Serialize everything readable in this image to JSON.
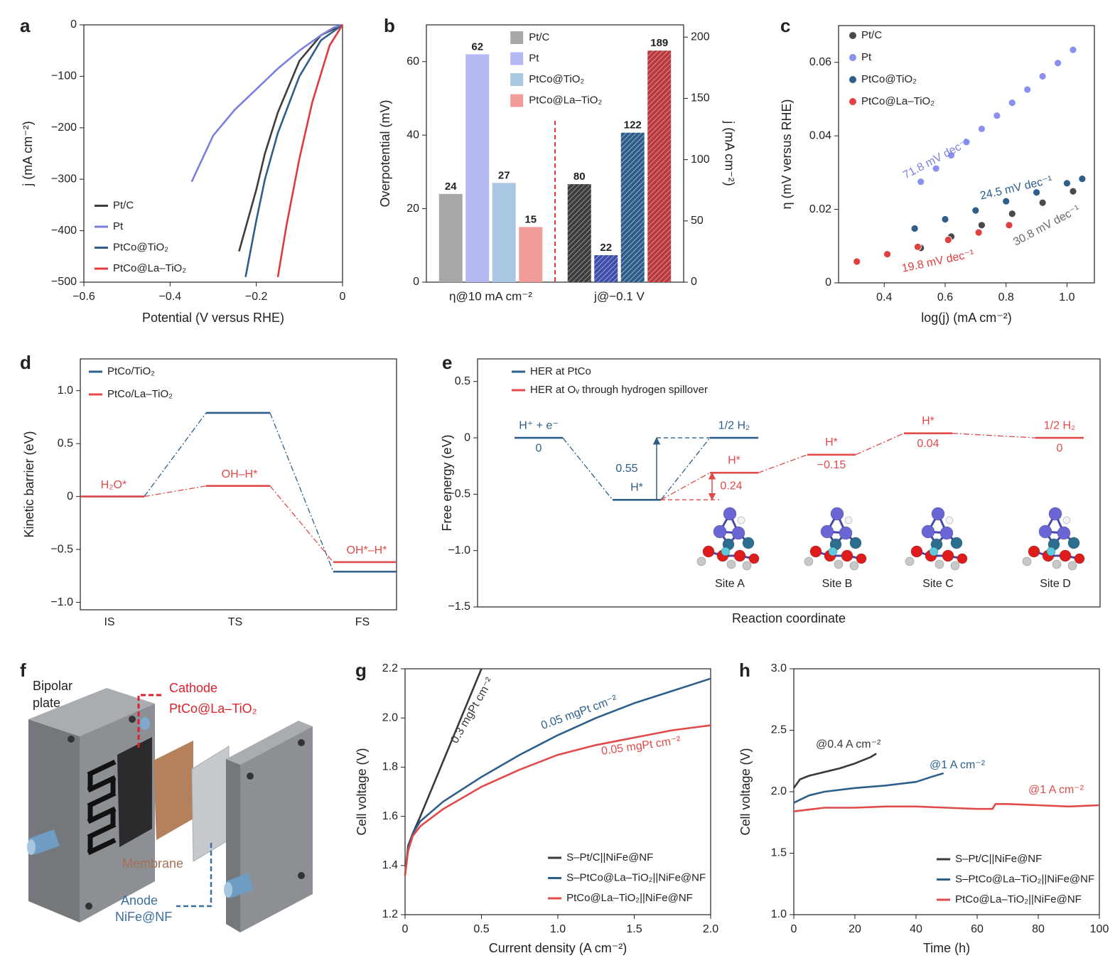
{
  "chart_data": [
    {
      "panel": "a",
      "type": "line",
      "xlabel": "Potential (V versus RHE)",
      "ylabel": "j (mA cm⁻²)",
      "xlim": [
        -0.6,
        0
      ],
      "ylim": [
        -500,
        0
      ],
      "xticks": [
        {
          "value": -0.6,
          "label": "−0.6"
        },
        {
          "value": -0.4,
          "label": "−0.4"
        },
        {
          "value": -0.2,
          "label": "−0.2"
        },
        0
      ],
      "yticks": [
        0,
        {
          "value": -100,
          "label": "−100"
        },
        {
          "value": -200,
          "label": "−200"
        },
        {
          "value": -300,
          "label": "−300"
        },
        {
          "value": -400,
          "label": "−400"
        },
        {
          "value": -500,
          "label": "−500"
        }
      ],
      "legend": "lower left",
      "series": [
        {
          "name": "Pt/C",
          "color": "#3d3d3d",
          "x": [
            0,
            -0.05,
            -0.1,
            -0.15,
            -0.18,
            -0.2,
            -0.24
          ],
          "values": [
            0,
            -20,
            -70,
            -170,
            -250,
            -320,
            -440
          ]
        },
        {
          "name": "Pt",
          "color": "#7b80e0",
          "x": [
            0,
            -0.02,
            -0.05,
            -0.1,
            -0.15,
            -0.2,
            -0.25,
            -0.3,
            -0.35
          ],
          "values": [
            0,
            -5,
            -20,
            -50,
            -85,
            -125,
            -165,
            -215,
            -305
          ]
        },
        {
          "name": "PtCo@TiO₂",
          "color": "#2e5f8a",
          "x": [
            0,
            -0.05,
            -0.1,
            -0.15,
            -0.18,
            -0.2,
            -0.225
          ],
          "values": [
            0,
            -30,
            -100,
            -210,
            -300,
            -380,
            -490
          ]
        },
        {
          "name": "PtCo@La–TiO₂",
          "color": "#e0393e",
          "x": [
            0,
            -0.03,
            -0.07,
            -0.1,
            -0.13,
            -0.15
          ],
          "values": [
            0,
            -40,
            -150,
            -260,
            -390,
            -490
          ]
        }
      ]
    },
    {
      "panel": "b",
      "type": "bar",
      "ylabel": "Overpotential (mV)",
      "y2label": "j (mA cm⁻²)",
      "categories": [
        "η@10 mA cm⁻²",
        "j@−0.1 V"
      ],
      "category_axes": [
        "y",
        "y2"
      ],
      "ylim": [
        0,
        70
      ],
      "yticks": [
        0,
        20,
        40,
        60
      ],
      "y2lim": [
        0,
        210
      ],
      "y2ticks": [
        0,
        50,
        100,
        150,
        200
      ],
      "legend": "upper center",
      "series": [
        {
          "name": "Pt/C",
          "color": "#a8a8a8",
          "hatch_color": "#3c3c3c",
          "values": [
            24,
            80
          ]
        },
        {
          "name": "Pt",
          "color": "#b3b7f2",
          "hatch_color": "#3d4ea6",
          "values": [
            62,
            22
          ]
        },
        {
          "name": "PtCo@TiO₂",
          "color": "#a9c7e3",
          "hatch_color": "#2f5b86",
          "values": [
            27,
            122
          ]
        },
        {
          "name": "PtCo@La–TiO₂",
          "color": "#f29b9b",
          "hatch_color": "#b73a3f",
          "values": [
            15,
            189
          ]
        }
      ]
    },
    {
      "panel": "c",
      "type": "scatter",
      "xlabel": "log(j) (mA cm⁻²)",
      "ylabel": "η (mV versus RHE)",
      "xlim": [
        0.25,
        1.09
      ],
      "ylim": [
        0,
        0.07
      ],
      "xticks": [
        0.4,
        0.6,
        0.8,
        {
          "value": 1,
          "label": "1.0"
        }
      ],
      "yticks": [
        0,
        0.02,
        0.04,
        0.06
      ],
      "legend": "upper left",
      "series": [
        {
          "name": "Pt/C",
          "color": "#4a4a4a",
          "x": [
            0.52,
            0.62,
            0.72,
            0.82,
            0.92,
            1.02
          ],
          "values": [
            0.0095,
            0.0126,
            0.0157,
            0.0188,
            0.0218,
            0.0249
          ]
        },
        {
          "name": "Pt",
          "color": "#8a8ff0",
          "x": [
            0.52,
            0.57,
            0.62,
            0.67,
            0.72,
            0.77,
            0.82,
            0.87,
            0.92,
            0.97,
            1.02
          ],
          "values": [
            0.0275,
            0.0311,
            0.0347,
            0.0383,
            0.0419,
            0.0455,
            0.049,
            0.0526,
            0.0562,
            0.0598,
            0.0634
          ]
        },
        {
          "name": "PtCo@TiO₂",
          "color": "#2e5f8a",
          "x": [
            0.5,
            0.6,
            0.7,
            0.8,
            0.9,
            1.0,
            1.05
          ],
          "values": [
            0.0148,
            0.0173,
            0.0197,
            0.0222,
            0.0246,
            0.0271,
            0.0283
          ]
        },
        {
          "name": "PtCo@La–TiO₂",
          "color": "#e04040",
          "x": [
            0.31,
            0.41,
            0.51,
            0.61,
            0.71,
            0.81
          ],
          "values": [
            0.0058,
            0.0078,
            0.0098,
            0.0117,
            0.0137,
            0.0157
          ]
        }
      ],
      "annotations": [
        {
          "text": "71.8 mV dec⁻¹",
          "color": "#7b80e0"
        },
        {
          "text": "24.5 mV dec⁻¹",
          "color": "#2e5f8a"
        },
        {
          "text": "30.8 mV dec⁻¹",
          "color": "#6a6a6a"
        },
        {
          "text": "19.8 mV dec⁻¹",
          "color": "#e04040"
        }
      ]
    },
    {
      "panel": "d",
      "type": "barrier",
      "ylabel": "Kinetic barrier (eV)",
      "categories": [
        "IS",
        "TS",
        "FS"
      ],
      "ylim": [
        -1.07,
        1.3
      ],
      "yticks": [
        {
          "value": 1,
          "label": "1.0"
        },
        0.5,
        0,
        {
          "value": -0.5,
          "label": "−0.5"
        },
        {
          "value": -1,
          "label": "−1.0"
        }
      ],
      "legend": "upper left",
      "series": [
        {
          "name": "PtCo/TiO₂",
          "color": "#2e5f8a",
          "values": [
            0,
            0.79,
            -0.71
          ]
        },
        {
          "name": "PtCo/La–TiO₂",
          "color": "#e04a4a",
          "values": [
            0,
            0.1,
            -0.62
          ],
          "state_labels": [
            "H₂O*",
            "OH–H*",
            "OH*–H*"
          ]
        }
      ]
    },
    {
      "panel": "e",
      "type": "energy",
      "ylabel": "Free energy (eV)",
      "xlabel": "Reaction coordinate",
      "ylim": [
        -1.5,
        0.7
      ],
      "yticks": [
        0.5,
        0,
        {
          "value": -0.5,
          "label": "−0.5"
        },
        {
          "value": -1,
          "label": "−1.0"
        },
        {
          "value": -1.5,
          "label": "−1.5"
        }
      ],
      "legend": "upper left",
      "series": [
        {
          "name": "HER at PtCo",
          "color": "#2e5f8a",
          "values": [
            0,
            -0.55,
            0
          ],
          "state_labels": [
            "H⁺ + e⁻",
            "H*",
            "1/2 H₂"
          ],
          "value_labels": [
            "0",
            null,
            null
          ]
        },
        {
          "name": "HER at Oᵥ through hydrogen spillover",
          "color": "#e04a4a",
          "values": [
            -0.31,
            -0.15,
            0.04,
            0
          ],
          "state_labels": [
            "H*",
            "H*",
            "H*",
            "1/2 H₂"
          ],
          "value_labels": [
            null,
            "−0.15",
            "0.04",
            "0"
          ]
        }
      ],
      "annotations": [
        {
          "value": 0.55,
          "color": "#2e5f8a"
        },
        {
          "value": 0.24,
          "color": "#e04a4a"
        }
      ],
      "sites": [
        "Site A",
        "Site B",
        "Site C",
        "Site D"
      ]
    },
    {
      "panel": "f",
      "type": "diagram",
      "labels": {
        "bipolar_plate": [
          "Bipolar",
          "plate"
        ],
        "cathode": "Cathode",
        "cathode_material": "PtCo@La–TiO₂",
        "membrane": "Membrane",
        "anode": "Anode",
        "anode_material": "NiFe@NF"
      }
    },
    {
      "panel": "g",
      "type": "line",
      "xlabel": "Current density (A cm⁻²)",
      "ylabel": "Cell voltage (V)",
      "xlim": [
        0,
        2
      ],
      "ylim": [
        1.2,
        2.2
      ],
      "xticks": [
        0,
        0.5,
        {
          "value": 1,
          "label": "1.0"
        },
        1.5,
        {
          "value": 2,
          "label": "2.0"
        }
      ],
      "yticks": [
        1.2,
        1.4,
        1.6,
        1.8,
        {
          "value": 2,
          "label": "2.0"
        },
        2.2
      ],
      "legend": "lower right",
      "series": [
        {
          "name": "S–Pt/C||NiFe@NF",
          "color": "#3a3a3a",
          "x": [
            0,
            0.02,
            0.05,
            0.1,
            0.2,
            0.3,
            0.4,
            0.5
          ],
          "values": [
            1.36,
            1.48,
            1.53,
            1.6,
            1.75,
            1.9,
            2.05,
            2.2
          ]
        },
        {
          "name": "S–PtCo@La–TiO₂||NiFe@NF",
          "color": "#2e5f8a",
          "x": [
            0,
            0.02,
            0.05,
            0.1,
            0.25,
            0.5,
            0.75,
            1,
            1.25,
            1.5,
            1.75,
            2
          ],
          "values": [
            1.36,
            1.47,
            1.53,
            1.58,
            1.66,
            1.76,
            1.85,
            1.93,
            2,
            2.06,
            2.11,
            2.16
          ]
        },
        {
          "name": "PtCo@La–TiO₂||NiFe@NF",
          "color": "#e04a4a",
          "x": [
            0,
            0.02,
            0.05,
            0.1,
            0.25,
            0.5,
            0.75,
            1,
            1.25,
            1.5,
            1.75,
            2
          ],
          "values": [
            1.36,
            1.46,
            1.52,
            1.56,
            1.63,
            1.72,
            1.79,
            1.85,
            1.89,
            1.92,
            1.95,
            1.97
          ]
        }
      ],
      "annotations": [
        {
          "text": "0.3 mgPt cm⁻²",
          "color": "#3a3a3a"
        },
        {
          "text": "0.05 mgPt cm⁻²",
          "color": "#2e5f8a"
        },
        {
          "text": "0.05 mgPt cm⁻²",
          "color": "#e04a4a"
        }
      ]
    },
    {
      "panel": "h",
      "type": "line",
      "xlabel": "Time (h)",
      "ylabel": "Cell voltage (V)",
      "xlim": [
        0,
        100
      ],
      "ylim": [
        1,
        3
      ],
      "xticks": [
        0,
        20,
        40,
        60,
        80,
        100
      ],
      "yticks": [
        {
          "value": 1,
          "label": "1.0"
        },
        1.5,
        {
          "value": 2,
          "label": "2.0"
        },
        2.5,
        {
          "value": 3,
          "label": "3.0"
        }
      ],
      "legend": "lower right",
      "series": [
        {
          "name": "S–Pt/C||NiFe@NF",
          "color": "#3a3a3a",
          "x": [
            0,
            2,
            5,
            10,
            15,
            20,
            25,
            27
          ],
          "values": [
            2.03,
            2.1,
            2.13,
            2.16,
            2.19,
            2.23,
            2.28,
            2.31
          ]
        },
        {
          "name": "S–PtCo@La–TiO₂||NiFe@NF",
          "color": "#2e5f8a",
          "x": [
            0,
            5,
            10,
            20,
            30,
            40,
            45,
            49
          ],
          "values": [
            1.91,
            1.97,
            2,
            2.03,
            2.05,
            2.08,
            2.12,
            2.15
          ]
        },
        {
          "name": "PtCo@La–TiO₂||NiFe@NF",
          "color": "#e04a4a",
          "x": [
            0,
            10,
            20,
            30,
            40,
            50,
            60,
            65,
            66,
            70,
            80,
            90,
            100
          ],
          "values": [
            1.84,
            1.87,
            1.87,
            1.88,
            1.88,
            1.87,
            1.86,
            1.86,
            1.9,
            1.9,
            1.89,
            1.88,
            1.89
          ]
        }
      ],
      "annotations": [
        {
          "text": "@0.4 A cm⁻²",
          "color": "#3a3a3a"
        },
        {
          "text": "@1 A cm⁻²",
          "color": "#2e5f8a"
        },
        {
          "text": "@1 A cm⁻²",
          "color": "#e04a4a"
        }
      ]
    }
  ]
}
